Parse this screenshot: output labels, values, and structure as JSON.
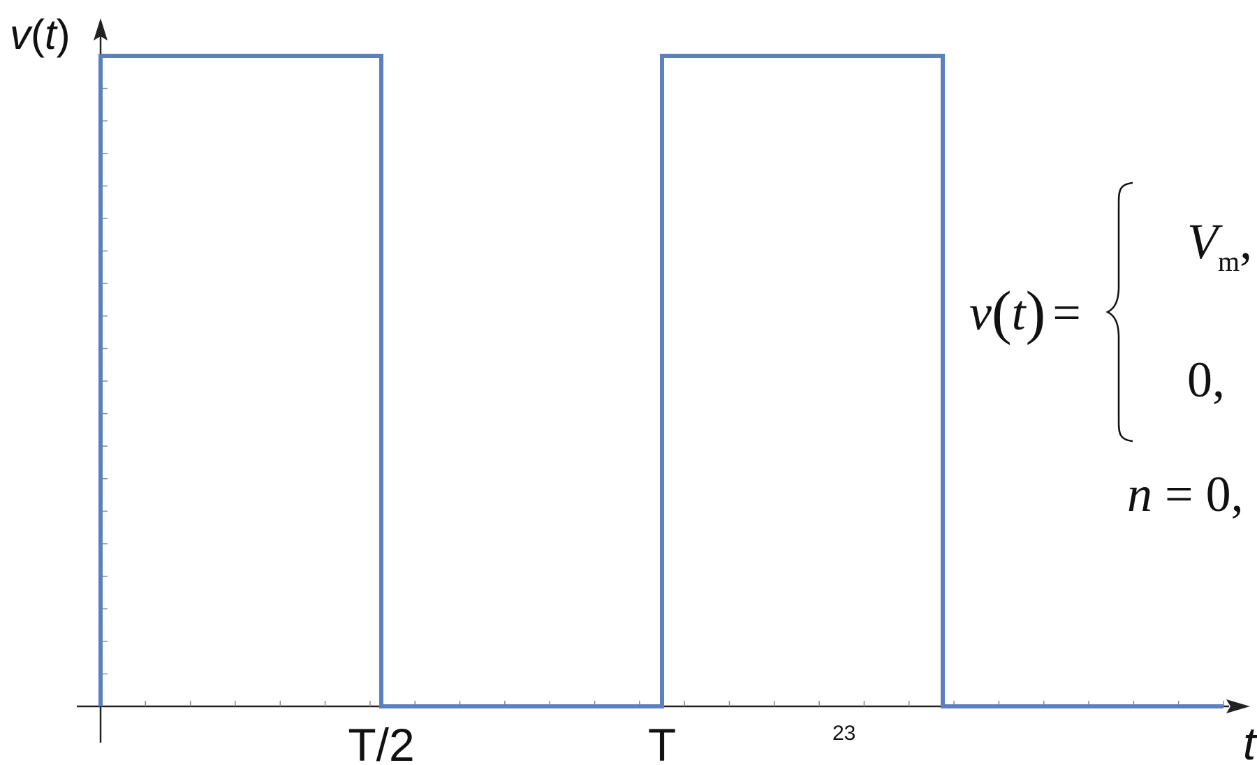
{
  "chart_data": {
    "type": "line",
    "title": "",
    "ylabel": "v(t)",
    "xlabel": "t",
    "x_ticks": [
      {
        "x": 0.5,
        "label": "T/2"
      },
      {
        "x": 1.0,
        "label": "T"
      }
    ],
    "xlim": [
      -0.04,
      2.04
    ],
    "ylim": [
      0,
      1.1
    ],
    "series": [
      {
        "color": "#5b7fbf",
        "points": [
          [
            0,
            0
          ],
          [
            0,
            1
          ],
          [
            0.5,
            1
          ],
          [
            0.5,
            0
          ],
          [
            1,
            0
          ],
          [
            1,
            1
          ],
          [
            1.5,
            1
          ],
          [
            1.5,
            0
          ],
          [
            2,
            0
          ]
        ]
      }
    ],
    "grid": false,
    "legend": "none"
  },
  "page_number": "23",
  "formula": {
    "lhs_v": "v",
    "lhs_t": "t",
    "equals": "=",
    "case1_V": "V",
    "case1_sub": "m",
    "case1_comma": ",",
    "case2": "0,",
    "n_var": "n",
    "n_rest": " = 0,"
  },
  "colors": {
    "signal": "#5b7fbf",
    "axis": "#222222"
  }
}
